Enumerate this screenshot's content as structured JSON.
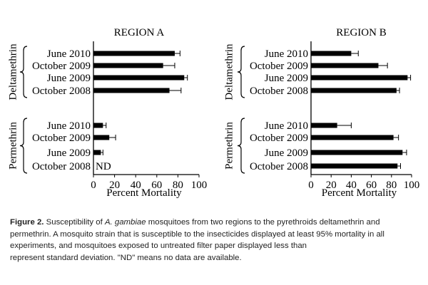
{
  "chart_data": [
    {
      "type": "bar",
      "orientation": "horizontal",
      "title": "REGION A",
      "xlabel": "Percent Mortality",
      "xlim": [
        0,
        100
      ],
      "xticks": [
        0,
        20,
        40,
        60,
        80,
        100
      ],
      "groups": [
        {
          "name": "Deltamethrin",
          "categories": [
            "June 2010",
            "October 2009",
            "June 2009",
            "October 2008"
          ],
          "values": [
            77,
            66,
            86,
            72
          ],
          "errors": [
            5,
            11,
            3,
            11
          ],
          "labels": [
            "",
            "",
            "",
            ""
          ]
        },
        {
          "name": "Permethrin",
          "categories": [
            "June 2010",
            "October 2009",
            "June 2009",
            "October 2008"
          ],
          "values": [
            9,
            15,
            7,
            null
          ],
          "errors": [
            3,
            6,
            2,
            null
          ],
          "labels": [
            "",
            "",
            "",
            "ND"
          ]
        }
      ],
      "grid": false
    },
    {
      "type": "bar",
      "orientation": "horizontal",
      "title": "REGION B",
      "xlabel": "Percent Mortality",
      "xlim": [
        0,
        100
      ],
      "xticks": [
        0,
        20,
        40,
        60,
        80,
        100
      ],
      "groups": [
        {
          "name": "Deltamethrin",
          "categories": [
            "June 2010",
            "October 2009",
            "June 2009",
            "October 2008"
          ],
          "values": [
            40,
            67,
            96,
            85
          ],
          "errors": [
            7,
            9,
            3,
            3
          ],
          "labels": [
            "",
            "",
            "",
            ""
          ]
        },
        {
          "name": "Permethrin",
          "categories": [
            "June 2010",
            "October 2009",
            "June 2009",
            "October 2008"
          ],
          "values": [
            26,
            82,
            91,
            86
          ],
          "errors": [
            14,
            5,
            4,
            3
          ],
          "labels": [
            "",
            "",
            "",
            ""
          ]
        }
      ],
      "grid": false
    }
  ],
  "caption": {
    "label": "Figure 2.",
    "line1_pre": " Susceptibility of ",
    "line1_species": "A. gambiae",
    "line1_post": " mosquitoes from two regions to the pyrethroids deltamethrin and",
    "line2": "permethrin. A mosquito strain that is susceptible to the insecticides displayed at least 95% mortality in all",
    "line3": "experiments, and mosquitoes exposed to untreated filter paper displayed less than",
    "line4": "represent standard deviation. \"ND\" means no data are available."
  }
}
